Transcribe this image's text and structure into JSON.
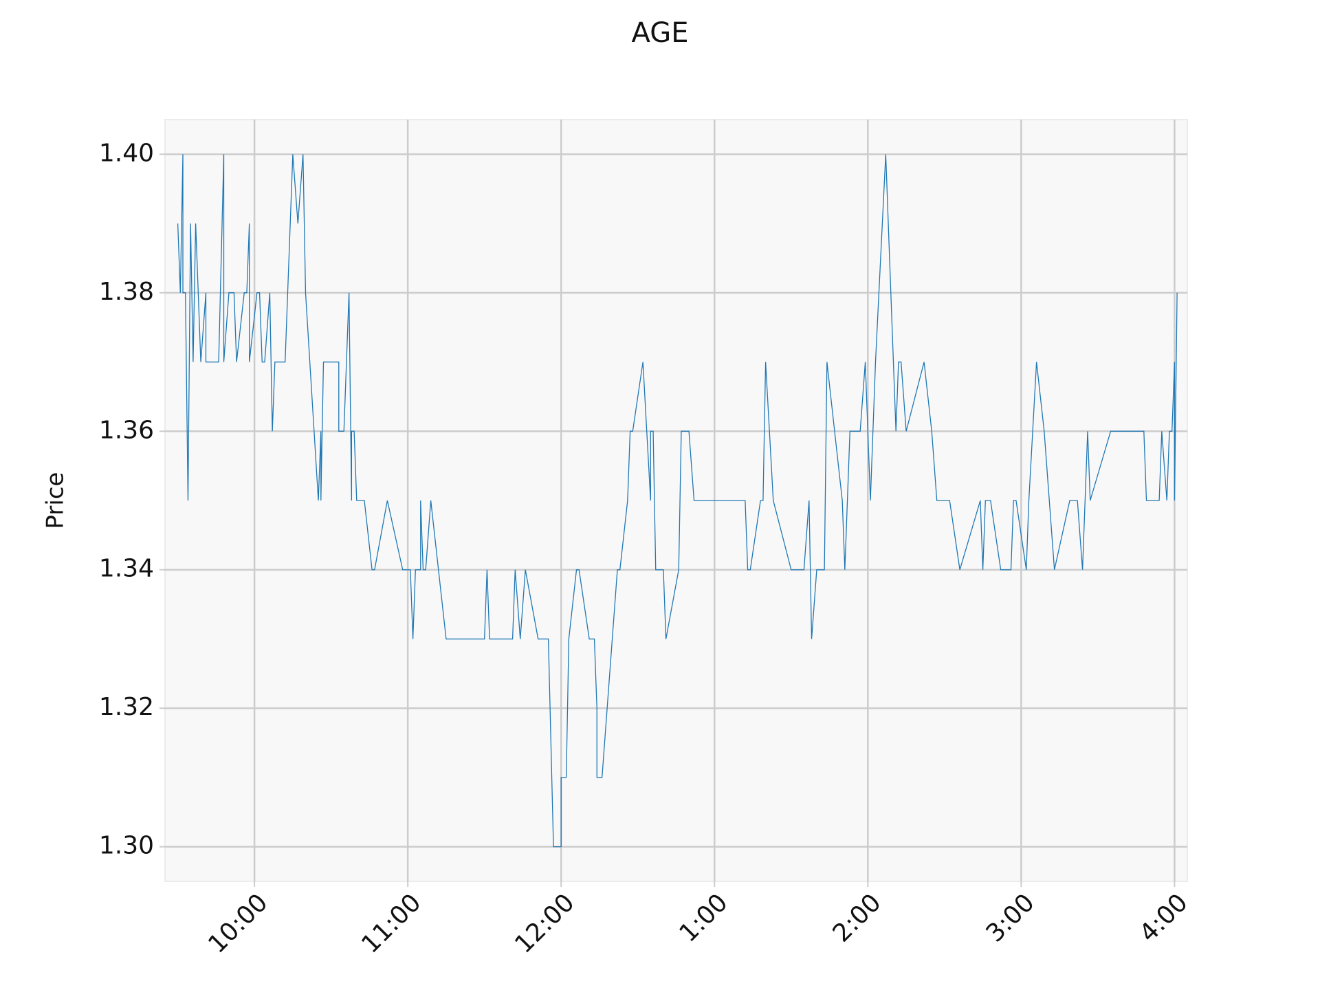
{
  "chart_data": {
    "type": "line",
    "title": "AGE",
    "ylabel": "Price",
    "color": "#1f77b4",
    "grid": true,
    "x": [
      570,
      571,
      572,
      572,
      573,
      574,
      575,
      576,
      577,
      577,
      579,
      581,
      581,
      586,
      588,
      588,
      590,
      592,
      593,
      596,
      597,
      598,
      598,
      601,
      602,
      603,
      604,
      606,
      607,
      608,
      612,
      614,
      615,
      617,
      619,
      620,
      625,
      626,
      626,
      627,
      633,
      633,
      635,
      636,
      637,
      638,
      638,
      639,
      640,
      643,
      646,
      647,
      652,
      658,
      661,
      662,
      663,
      665,
      665,
      666,
      667,
      669,
      675,
      690,
      691,
      692,
      701,
      702,
      704,
      706,
      711,
      715,
      717,
      720,
      720,
      722,
      723,
      726,
      727,
      731,
      733,
      734,
      734,
      736,
      742,
      743,
      746,
      747,
      748,
      752,
      755,
      755,
      756,
      757,
      760,
      761,
      766,
      767,
      770,
      772,
      792,
      793,
      794,
      798,
      799,
      800,
      803,
      810,
      815,
      817,
      818,
      820,
      823,
      824,
      830,
      831,
      833,
      837,
      839,
      841,
      843,
      847,
      848,
      851,
      852,
      853,
      855,
      862,
      865,
      867,
      872,
      876,
      884,
      885,
      886,
      888,
      892,
      896,
      897,
      898,
      902,
      903,
      906,
      909,
      913,
      919,
      922,
      924,
      926,
      927,
      935,
      948,
      949,
      954,
      955,
      957,
      958,
      959,
      960,
      960,
      961
    ],
    "values": [
      1.39,
      1.38,
      1.4,
      1.38,
      1.38,
      1.35,
      1.39,
      1.37,
      1.39,
      1.39,
      1.37,
      1.38,
      1.37,
      1.37,
      1.4,
      1.37,
      1.38,
      1.38,
      1.37,
      1.38,
      1.38,
      1.39,
      1.37,
      1.38,
      1.38,
      1.37,
      1.37,
      1.38,
      1.36,
      1.37,
      1.37,
      1.39,
      1.4,
      1.39,
      1.4,
      1.38,
      1.35,
      1.36,
      1.35,
      1.37,
      1.37,
      1.36,
      1.36,
      1.37,
      1.38,
      1.35,
      1.36,
      1.36,
      1.35,
      1.35,
      1.34,
      1.34,
      1.35,
      1.34,
      1.34,
      1.33,
      1.34,
      1.34,
      1.35,
      1.34,
      1.34,
      1.35,
      1.33,
      1.33,
      1.34,
      1.33,
      1.33,
      1.34,
      1.33,
      1.34,
      1.33,
      1.33,
      1.3,
      1.3,
      1.31,
      1.31,
      1.33,
      1.34,
      1.34,
      1.33,
      1.33,
      1.32,
      1.31,
      1.31,
      1.34,
      1.34,
      1.35,
      1.36,
      1.36,
      1.37,
      1.35,
      1.36,
      1.36,
      1.34,
      1.34,
      1.33,
      1.34,
      1.36,
      1.36,
      1.35,
      1.35,
      1.34,
      1.34,
      1.35,
      1.35,
      1.37,
      1.35,
      1.34,
      1.34,
      1.35,
      1.33,
      1.34,
      1.34,
      1.37,
      1.35,
      1.34,
      1.36,
      1.36,
      1.37,
      1.35,
      1.37,
      1.4,
      1.39,
      1.36,
      1.37,
      1.37,
      1.36,
      1.37,
      1.36,
      1.35,
      1.35,
      1.34,
      1.35,
      1.34,
      1.35,
      1.35,
      1.34,
      1.34,
      1.35,
      1.35,
      1.34,
      1.35,
      1.37,
      1.36,
      1.34,
      1.35,
      1.35,
      1.34,
      1.36,
      1.35,
      1.36,
      1.36,
      1.35,
      1.35,
      1.36,
      1.35,
      1.36,
      1.36,
      1.37,
      1.35,
      1.38
    ],
    "xlim": [
      565,
      965
    ],
    "ylim": [
      1.295,
      1.405
    ],
    "xticks": [
      {
        "value": 600,
        "label": "10:00"
      },
      {
        "value": 660,
        "label": "11:00"
      },
      {
        "value": 720,
        "label": "12:00"
      },
      {
        "value": 780,
        "label": "1:00"
      },
      {
        "value": 840,
        "label": "2:00"
      },
      {
        "value": 900,
        "label": "3:00"
      },
      {
        "value": 960,
        "label": "4:00"
      }
    ],
    "yticks": [
      {
        "value": 1.3,
        "label": "1.30"
      },
      1.32,
      1.34,
      1.36,
      1.38,
      {
        "value": 1.4,
        "label": "1.40"
      }
    ]
  }
}
